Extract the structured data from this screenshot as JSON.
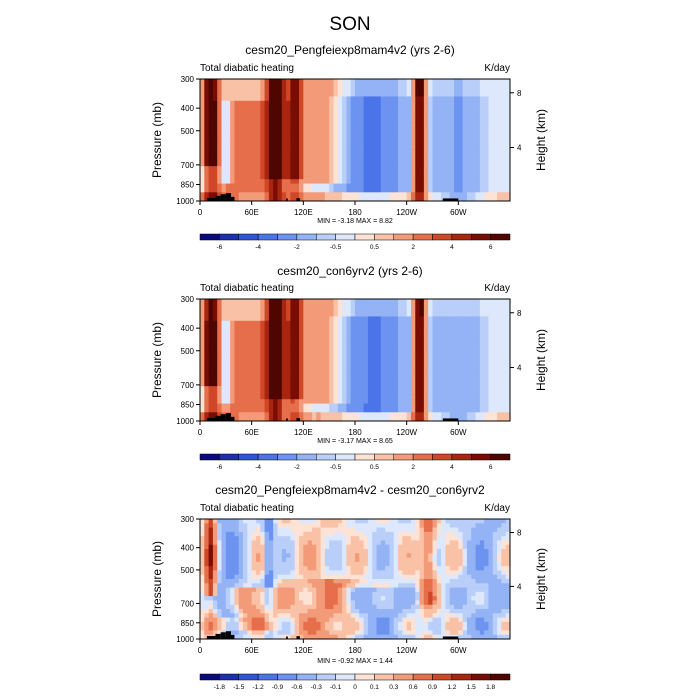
{
  "figure": {
    "title": "SON"
  },
  "chart_data": [
    {
      "type": "heatmap",
      "title": "cesm20_Pengfeiexp8mam4v2 (yrs 2-6)",
      "left_label": "Total diabatic heating",
      "right_label": "K/day",
      "ylabel": "Pressure (mb)",
      "y2label": "Height (km)",
      "xlabel": "",
      "x_ticks": [
        "0",
        "60E",
        "120E",
        "180",
        "120W",
        "60W"
      ],
      "x_tick_values": [
        0,
        60,
        120,
        180,
        240,
        300
      ],
      "x_range": [
        0,
        360
      ],
      "y_ticks": [
        "300",
        "400",
        "500",
        "700",
        "850",
        "1000"
      ],
      "y_tick_values": [
        300,
        400,
        500,
        700,
        850,
        1000
      ],
      "y_range": [
        300,
        1000
      ],
      "y2_ticks": [
        "8",
        "4"
      ],
      "y2_tick_values": [
        8,
        4
      ],
      "min_max_text": "MIN = -3.18  MAX = 8.82",
      "colorbar_labels": [
        "-6",
        "-4",
        "-2",
        "-0.5",
        "0.5",
        "2",
        "4",
        "6"
      ],
      "colorbar_levels": [
        -6,
        -5,
        -4,
        -3,
        -2,
        -1,
        -0.5,
        0,
        0.5,
        1,
        2,
        3,
        4,
        5,
        6
      ]
    },
    {
      "type": "heatmap",
      "title": "cesm20_con6yrv2 (yrs 2-6)",
      "left_label": "Total diabatic heating",
      "right_label": "K/day",
      "ylabel": "Pressure (mb)",
      "y2label": "Height (km)",
      "xlabel": "",
      "x_ticks": [
        "0",
        "60E",
        "120E",
        "180",
        "120W",
        "60W"
      ],
      "x_tick_values": [
        0,
        60,
        120,
        180,
        240,
        300
      ],
      "x_range": [
        0,
        360
      ],
      "y_ticks": [
        "300",
        "400",
        "500",
        "700",
        "850",
        "1000"
      ],
      "y_tick_values": [
        300,
        400,
        500,
        700,
        850,
        1000
      ],
      "y_range": [
        300,
        1000
      ],
      "y2_ticks": [
        "8",
        "4"
      ],
      "y2_tick_values": [
        8,
        4
      ],
      "min_max_text": "MIN = -3.17  MAX = 8.65",
      "colorbar_labels": [
        "-6",
        "-4",
        "-2",
        "-0.5",
        "0.5",
        "2",
        "4",
        "6"
      ],
      "colorbar_levels": [
        -6,
        -5,
        -4,
        -3,
        -2,
        -1,
        -0.5,
        0,
        0.5,
        1,
        2,
        3,
        4,
        5,
        6
      ]
    },
    {
      "type": "heatmap",
      "title": "cesm20_Pengfeiexp8mam4v2 - cesm20_con6yrv2",
      "left_label": "Total diabatic heating",
      "right_label": "K/day",
      "ylabel": "Pressure (mb)",
      "y2label": "Height (km)",
      "xlabel": "",
      "x_ticks": [
        "0",
        "60E",
        "120E",
        "180",
        "120W",
        "60W"
      ],
      "x_tick_values": [
        0,
        60,
        120,
        180,
        240,
        300
      ],
      "x_range": [
        0,
        360
      ],
      "y_ticks": [
        "300",
        "400",
        "500",
        "700",
        "850",
        "1000"
      ],
      "y_tick_values": [
        300,
        400,
        500,
        700,
        850,
        1000
      ],
      "y_range": [
        300,
        1000
      ],
      "y2_ticks": [
        "8",
        "4"
      ],
      "y2_tick_values": [
        8,
        4
      ],
      "min_max_text": "MIN = -0.92  MAX = 1.44",
      "colorbar_labels": [
        "-1.8",
        "-1.5",
        "-1.2",
        "-0.9",
        "-0.6",
        "-0.3",
        "-0.1",
        "0",
        "0.1",
        "0.3",
        "0.6",
        "0.9",
        "1.2",
        "1.5",
        "1.8"
      ],
      "colorbar_levels": [
        -1.8,
        -1.5,
        -1.2,
        -0.9,
        -0.6,
        -0.3,
        -0.1,
        0,
        0.1,
        0.3,
        0.6,
        0.9,
        1.2,
        1.5,
        1.8
      ]
    }
  ],
  "colors": {
    "palette": [
      "#0a0a7a",
      "#1e2fae",
      "#2f55d6",
      "#4a74e8",
      "#6d93f0",
      "#93b3f5",
      "#b9cff9",
      "#dde8fc",
      "#fde3d6",
      "#f9c1a6",
      "#f39a78",
      "#e66e4b",
      "#cf4727",
      "#a82510",
      "#7a0d03",
      "#4f0500"
    ],
    "topography": "#000000"
  }
}
